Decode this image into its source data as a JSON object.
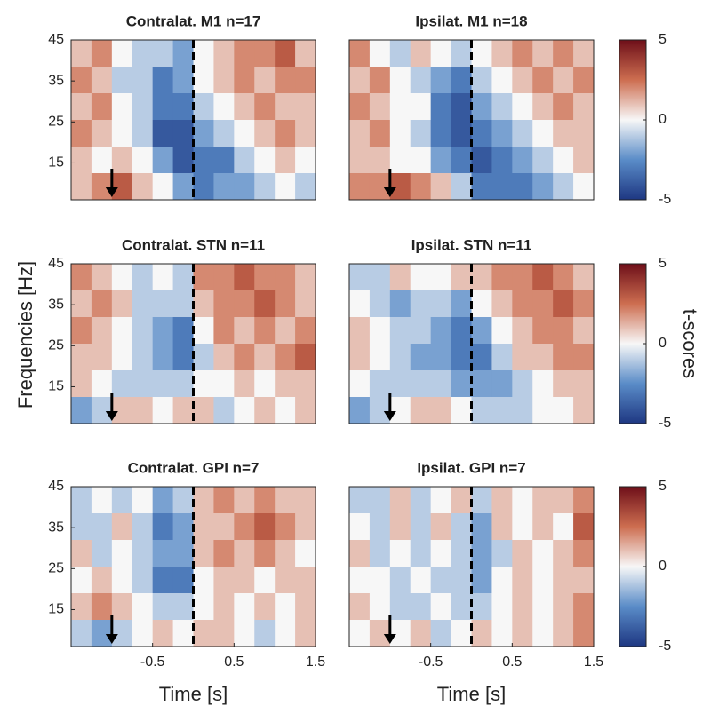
{
  "chart_data": [
    {
      "type": "heatmap",
      "title": "Contralat. M1  n=17",
      "xlim": [
        -1.5,
        1.5
      ],
      "ylim": [
        6,
        45
      ],
      "yticks": [
        15,
        25,
        35,
        45
      ],
      "z": [
        [
          1,
          2,
          0,
          -1,
          -1,
          -2,
          0,
          1,
          2,
          2,
          3,
          1
        ],
        [
          2,
          1,
          -1,
          -1,
          -3,
          -2,
          0,
          1,
          2,
          1,
          2,
          2
        ],
        [
          1,
          2,
          0,
          -1,
          -3,
          -3,
          -1,
          0,
          1,
          2,
          1,
          1
        ],
        [
          2,
          1,
          0,
          -1,
          -4,
          -4,
          -2,
          -1,
          0,
          1,
          2,
          1
        ],
        [
          1,
          0,
          1,
          0,
          -2,
          -4,
          -3,
          -3,
          -1,
          0,
          1,
          0
        ],
        [
          1,
          2,
          3,
          1,
          0,
          -2,
          -3,
          -2,
          -2,
          -1,
          0,
          -1
        ]
      ]
    },
    {
      "type": "heatmap",
      "title": "Ipsilat. M1  n=18",
      "xlim": [
        -1.5,
        1.5
      ],
      "ylim": [
        6,
        45
      ],
      "clim": [
        -5,
        5
      ],
      "cticks": [
        -5,
        0,
        5
      ],
      "z": [
        [
          2,
          0,
          -1,
          1,
          0,
          -1,
          0,
          1,
          2,
          1,
          2,
          1
        ],
        [
          1,
          2,
          0,
          -1,
          -2,
          -3,
          -1,
          0,
          1,
          2,
          1,
          2
        ],
        [
          2,
          1,
          0,
          0,
          -3,
          -4,
          -2,
          -1,
          0,
          1,
          2,
          1
        ],
        [
          1,
          2,
          0,
          -1,
          -3,
          -4,
          -3,
          -2,
          -1,
          0,
          1,
          1
        ],
        [
          1,
          1,
          0,
          0,
          -2,
          -3,
          -4,
          -3,
          -2,
          -1,
          0,
          1
        ],
        [
          2,
          2,
          3,
          2,
          1,
          -1,
          -3,
          -3,
          -3,
          -2,
          -1,
          0
        ]
      ]
    },
    {
      "type": "heatmap",
      "title": "Contralat. STN  n=11",
      "ylabel": "Frequencies [Hz]",
      "xlim": [
        -1.5,
        1.5
      ],
      "ylim": [
        6,
        45
      ],
      "yticks": [
        15,
        25,
        35,
        45
      ],
      "z": [
        [
          2,
          1,
          0,
          -1,
          0,
          -1,
          2,
          2,
          3,
          2,
          2,
          1
        ],
        [
          1,
          2,
          1,
          -1,
          -1,
          -1,
          1,
          2,
          2,
          3,
          2,
          1
        ],
        [
          2,
          1,
          0,
          -1,
          -2,
          -3,
          0,
          2,
          1,
          2,
          1,
          2
        ],
        [
          1,
          1,
          0,
          -1,
          -2,
          -3,
          -1,
          1,
          2,
          1,
          2,
          3
        ],
        [
          1,
          0,
          -1,
          -1,
          -1,
          -1,
          0,
          0,
          1,
          0,
          1,
          1
        ],
        [
          -2,
          -1,
          1,
          1,
          0,
          1,
          1,
          -1,
          0,
          1,
          0,
          1
        ]
      ]
    },
    {
      "type": "heatmap",
      "title": "Ipsilat. STN  n=11",
      "xlim": [
        -1.5,
        1.5
      ],
      "ylim": [
        6,
        45
      ],
      "clim": [
        -5,
        5
      ],
      "cticks": [
        -5,
        0,
        5
      ],
      "colorbar_label": "t-scores",
      "z": [
        [
          -1,
          -1,
          1,
          0,
          0,
          1,
          1,
          2,
          2,
          3,
          2,
          1
        ],
        [
          0,
          -1,
          -2,
          -1,
          -1,
          -2,
          0,
          1,
          2,
          2,
          3,
          2
        ],
        [
          1,
          0,
          -1,
          -1,
          -2,
          -3,
          -2,
          0,
          1,
          2,
          2,
          1
        ],
        [
          1,
          0,
          -1,
          -2,
          -2,
          -3,
          -3,
          -1,
          1,
          1,
          2,
          2
        ],
        [
          0,
          -1,
          -1,
          -1,
          -1,
          -2,
          -2,
          -2,
          -1,
          0,
          1,
          1
        ],
        [
          -2,
          -1,
          0,
          1,
          1,
          0,
          -1,
          -1,
          -1,
          0,
          0,
          1
        ]
      ]
    },
    {
      "type": "heatmap",
      "title": "Contralat. GPI  n=7",
      "xlabel": "Time [s]",
      "xlim": [
        -1.5,
        1.5
      ],
      "ylim": [
        6,
        45
      ],
      "yticks": [
        15,
        25,
        35,
        45
      ],
      "xticks": [
        -0.5,
        0.5,
        1.5
      ],
      "z": [
        [
          -1,
          0,
          -1,
          0,
          -2,
          -1,
          1,
          2,
          1,
          2,
          1,
          1
        ],
        [
          -1,
          -1,
          1,
          -1,
          -3,
          -2,
          1,
          1,
          2,
          3,
          2,
          1
        ],
        [
          1,
          -1,
          0,
          -1,
          -2,
          -2,
          1,
          2,
          1,
          2,
          1,
          0
        ],
        [
          0,
          1,
          0,
          -1,
          -3,
          -3,
          0,
          1,
          1,
          0,
          1,
          1
        ],
        [
          1,
          2,
          1,
          0,
          -1,
          -1,
          0,
          1,
          0,
          1,
          0,
          1
        ],
        [
          -1,
          -2,
          -1,
          0,
          1,
          0,
          1,
          1,
          0,
          -1,
          0,
          1
        ]
      ]
    },
    {
      "type": "heatmap",
      "title": "Ipsilat. GPI  n=7",
      "xlabel": "Time [s]",
      "xlim": [
        -1.5,
        1.5
      ],
      "ylim": [
        6,
        45
      ],
      "xticks": [
        -0.5,
        0.5,
        1.5
      ],
      "clim": [
        -5,
        5
      ],
      "cticks": [
        -5,
        0,
        5
      ],
      "z": [
        [
          -1,
          -1,
          1,
          -1,
          0,
          1,
          -1,
          1,
          0,
          1,
          1,
          2
        ],
        [
          0,
          -1,
          1,
          -1,
          1,
          -1,
          -2,
          1,
          0,
          1,
          0,
          3
        ],
        [
          1,
          -1,
          0,
          -1,
          0,
          -1,
          -2,
          -1,
          1,
          0,
          1,
          2
        ],
        [
          0,
          0,
          -1,
          0,
          -1,
          -1,
          -2,
          0,
          1,
          0,
          1,
          1
        ],
        [
          1,
          0,
          -1,
          -1,
          0,
          -1,
          -1,
          0,
          1,
          0,
          1,
          2
        ],
        [
          0,
          1,
          0,
          1,
          -1,
          0,
          1,
          0,
          1,
          0,
          1,
          2
        ]
      ]
    }
  ]
}
